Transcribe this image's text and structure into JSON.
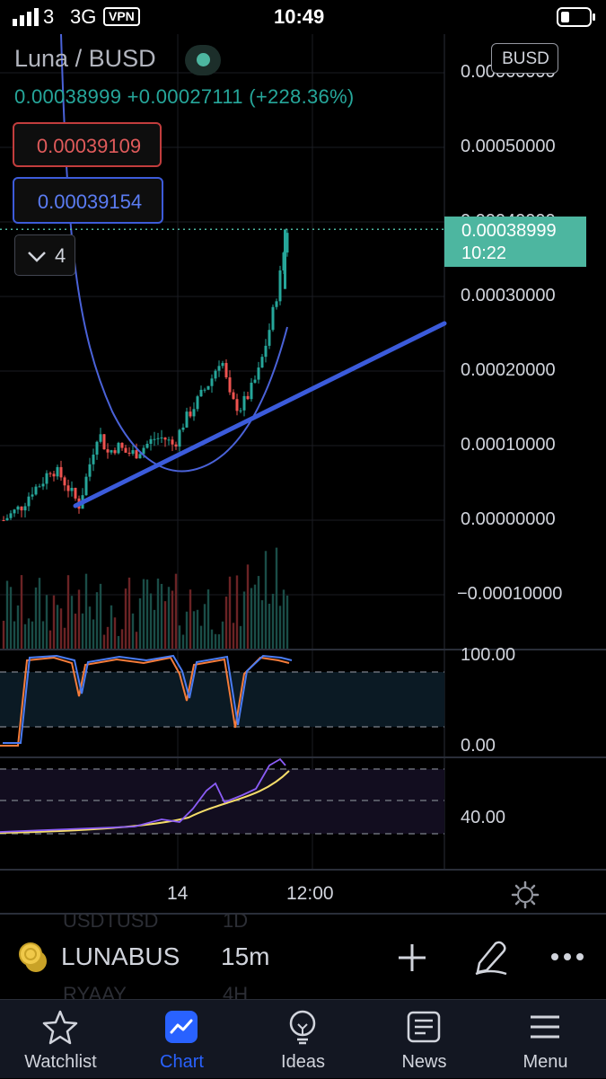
{
  "status_bar": {
    "carrier": "3",
    "network": "3G",
    "vpn": "VPN",
    "time": "10:49"
  },
  "header": {
    "title": "Luna / BUSD",
    "last": "0.00038999",
    "change": "+0.00027111",
    "change_pct": "(+228.36%)",
    "sell_price": "0.00039109",
    "buy_price": "0.00039154",
    "indicator_count": "4",
    "currency": "BUSD"
  },
  "colors": {
    "up": "#26a69a",
    "down": "#ef5350",
    "accent": "#2962ff",
    "trendline": "#3b5bdb",
    "last_price_bg": "#4db6a0"
  },
  "price_axis": {
    "labels": [
      "0.00060000",
      "0.00050000",
      "0.00040000",
      "0.00030000",
      "0.00020000",
      "0.00010000",
      "0.00000000",
      "−0.00010000"
    ],
    "last_price": "0.00038999",
    "countdown": "10:22"
  },
  "stoch_axis": {
    "top": "100.00",
    "bottom": "0.00"
  },
  "rsi_axis": {
    "label": "40.00"
  },
  "time_axis": {
    "labels": [
      "14",
      "12:00"
    ]
  },
  "chart_data": {
    "type": "candlestick",
    "symbol": "LUNABUS",
    "interval": "15m",
    "ylim": [
      -0.00014,
      0.0006
    ],
    "last_price": 0.00038999,
    "candles_close_approx": [
      0.0,
      1e-05,
      2e-05,
      4e-05,
      5e-05,
      7e-05,
      6e-05,
      4e-05,
      2e-05,
      7e-05,
      0.00012,
      9e-05,
      0.0001,
      9e-05,
      9e-05,
      0.0001,
      0.00011,
      0.00011,
      0.0001,
      0.00013,
      0.00015,
      0.00017,
      0.00019,
      0.00022,
      0.00016,
      0.00015,
      0.00017,
      0.0002,
      0.00025,
      0.00031,
      0.00039
    ],
    "stoch_range": [
      0,
      100
    ],
    "rsi_reference": 40
  },
  "symbol_bar": {
    "symbol": "LUNABUS",
    "interval": "15m",
    "ghost_top_symbol": "USDTUSD",
    "ghost_top_interval": "1D",
    "ghost_bottom_symbol": "RYAAY",
    "ghost_bottom_interval": "4H",
    "icons": [
      "coin-icon",
      "plus-icon",
      "drawing-pen-icon",
      "more-icon"
    ]
  },
  "tabs": [
    {
      "label": "Watchlist",
      "icon": "star-icon"
    },
    {
      "label": "Chart",
      "icon": "chart-icon",
      "active": true
    },
    {
      "label": "Ideas",
      "icon": "lightbulb-icon"
    },
    {
      "label": "News",
      "icon": "news-icon"
    },
    {
      "label": "Menu",
      "icon": "menu-icon"
    }
  ]
}
